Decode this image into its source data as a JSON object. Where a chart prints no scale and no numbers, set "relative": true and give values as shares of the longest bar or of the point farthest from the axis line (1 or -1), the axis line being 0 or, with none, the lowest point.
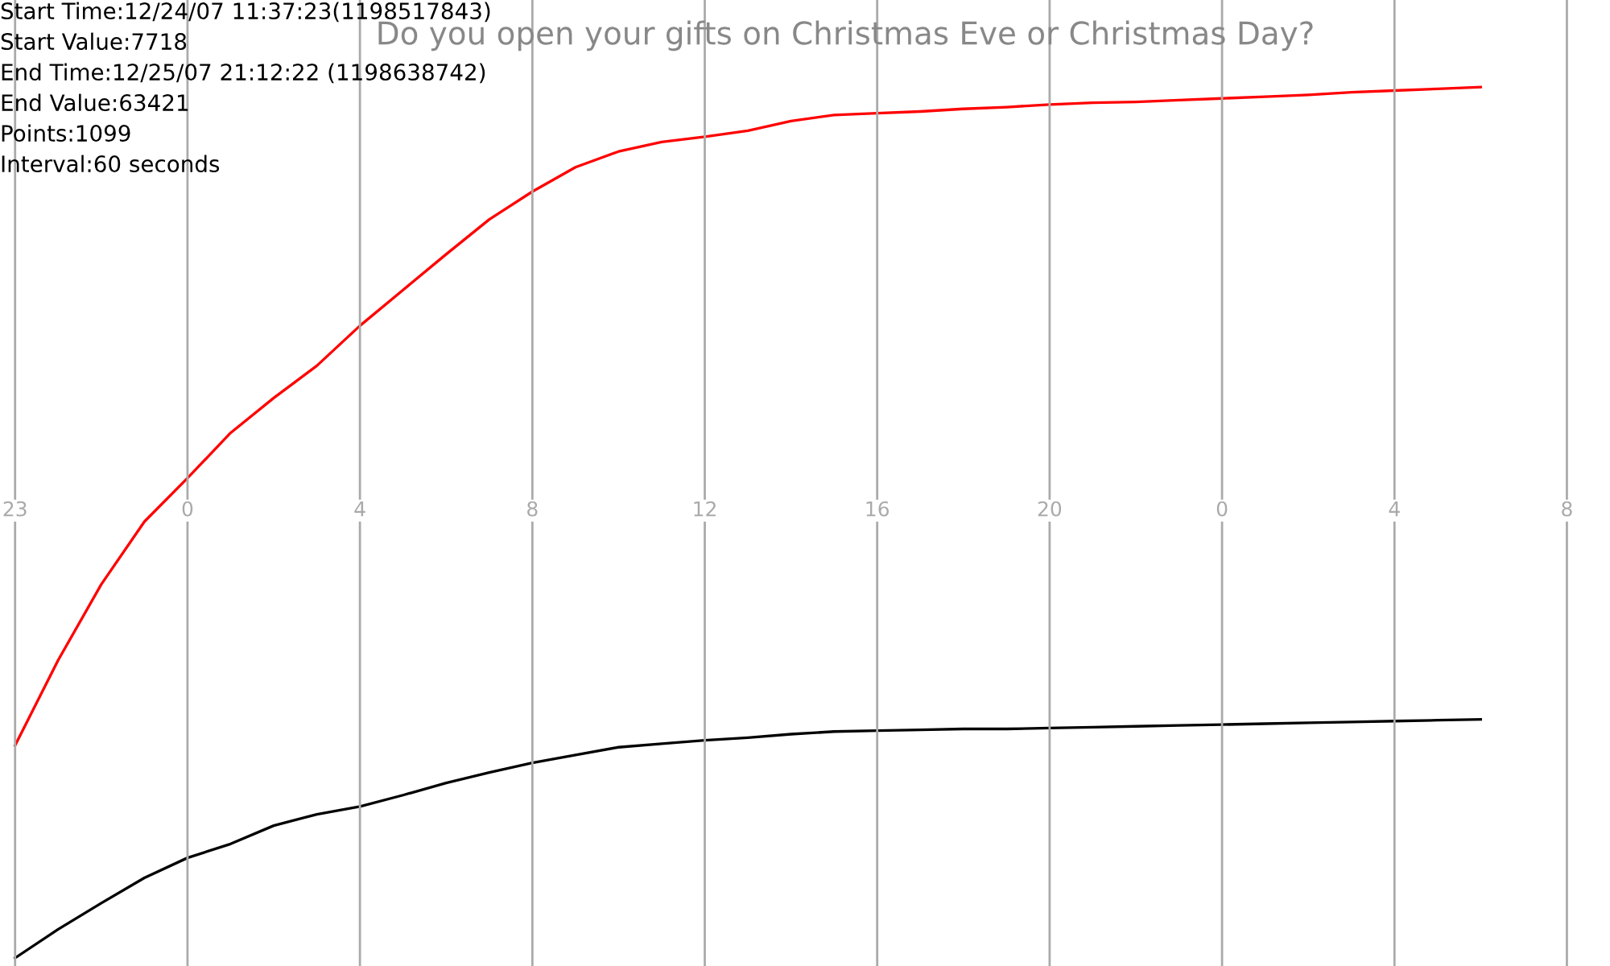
{
  "chart_data": {
    "type": "line",
    "title": "Do you open your gifts on Christmas Eve or Christmas Day?",
    "annotations": [
      "Start Time:12/24/07 11:37:23(1198517843)",
      "Start Value:7718",
      "End Time:12/25/07 21:12:22 (1198638742)",
      "End Value:63421",
      "Points:1099",
      "Interval:60 seconds"
    ],
    "relative": true,
    "categories": [
      "23",
      null,
      null,
      null,
      "0",
      null,
      null,
      null,
      "4",
      null,
      null,
      null,
      "8",
      null,
      null,
      null,
      "12",
      null,
      null,
      null,
      "16",
      null,
      null,
      null,
      "20",
      null,
      null,
      null,
      "0",
      null,
      null,
      null,
      "4",
      null,
      null,
      null,
      "8"
    ],
    "grid": "x",
    "series": [
      {
        "color": "#ff0000",
        "values": [
          0.244,
          0.342,
          0.429,
          0.501,
          0.551,
          0.603,
          0.643,
          0.68,
          0.726,
          0.767,
          0.808,
          0.848,
          0.88,
          0.908,
          0.926,
          0.937,
          0.943,
          0.95,
          0.961,
          0.968,
          0.97,
          0.972,
          0.975,
          0.977,
          0.98,
          0.982,
          0.983,
          0.985,
          0.987,
          0.989,
          0.991,
          0.994,
          0.996,
          0.998,
          1.0,
          null,
          null
        ]
      },
      {
        "color": "#000000",
        "values": [
          0,
          0.033,
          0.063,
          0.092,
          0.115,
          0.131,
          0.152,
          0.165,
          0.174,
          0.187,
          0.201,
          0.213,
          0.224,
          0.233,
          0.242,
          0.246,
          0.25,
          0.253,
          0.257,
          0.26,
          0.261,
          0.262,
          0.263,
          0.263,
          0.264,
          0.265,
          0.266,
          0.267,
          0.268,
          0.269,
          0.27,
          0.271,
          0.272,
          0.273,
          0.274,
          null,
          null
        ]
      }
    ]
  }
}
